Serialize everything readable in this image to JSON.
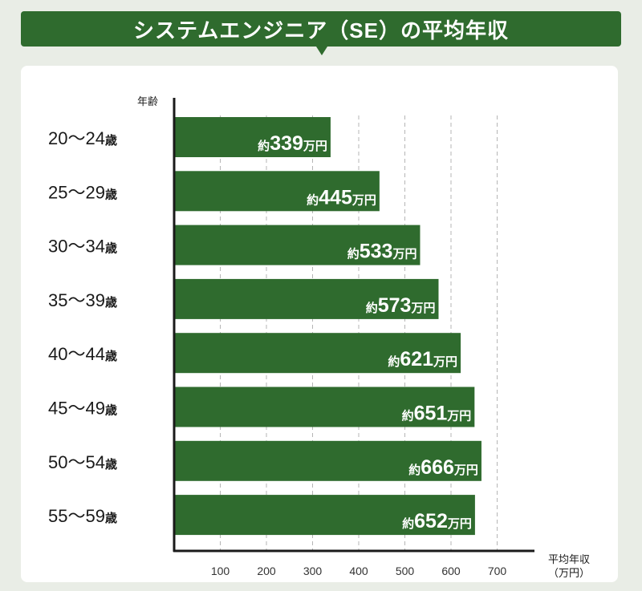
{
  "chart_data": {
    "type": "bar",
    "orientation": "horizontal",
    "title": "システムエンジニア（SE）の平均年収",
    "ylabel": "年齢",
    "xlabel": "平均年収",
    "xunit": "（万円）",
    "categories": [
      {
        "label": "20〜24",
        "suffix": "歳"
      },
      {
        "label": "25〜29",
        "suffix": "歳"
      },
      {
        "label": "30〜34",
        "suffix": "歳"
      },
      {
        "label": "35〜39",
        "suffix": "歳"
      },
      {
        "label": "40〜44",
        "suffix": "歳"
      },
      {
        "label": "45〜49",
        "suffix": "歳"
      },
      {
        "label": "50〜54",
        "suffix": "歳"
      },
      {
        "label": "55〜59",
        "suffix": "歳"
      }
    ],
    "values": [
      339,
      445,
      533,
      573,
      621,
      651,
      666,
      652
    ],
    "value_prefix": "約",
    "value_suffix": "万円",
    "xticks": [
      100,
      200,
      300,
      400,
      500,
      600,
      700
    ],
    "xlim": [
      0,
      700
    ],
    "grid": true,
    "bar_color": "#2f6b2e"
  }
}
